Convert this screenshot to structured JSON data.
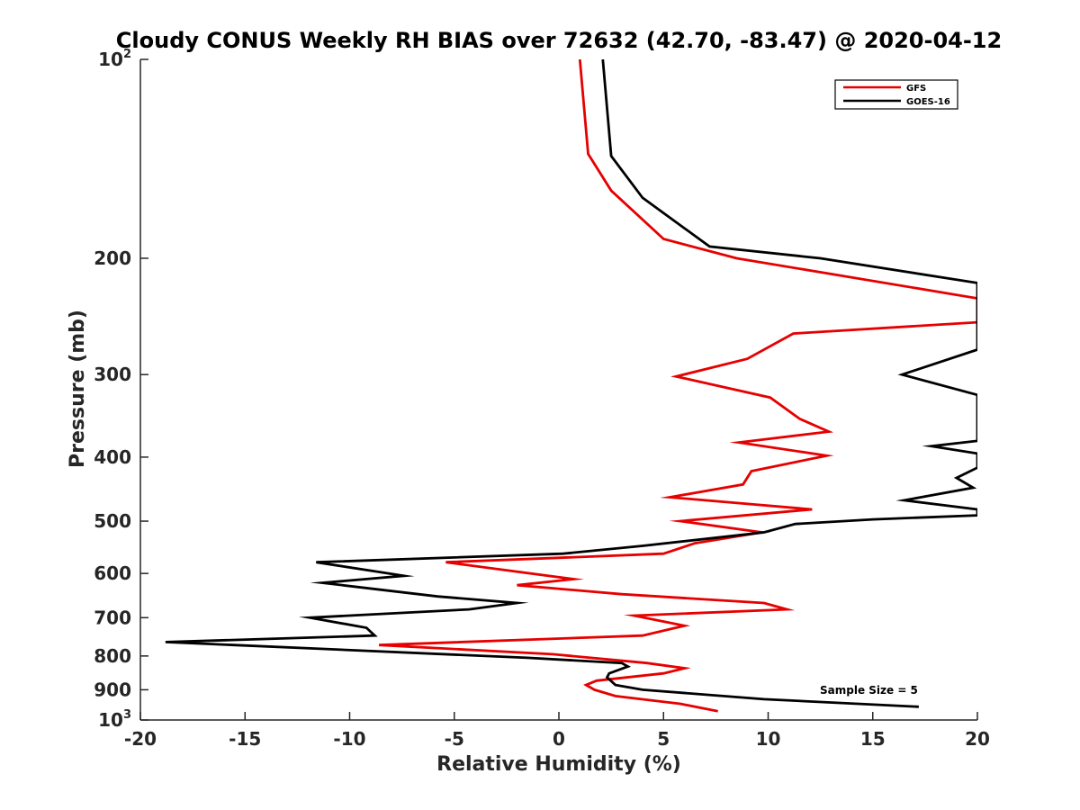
{
  "chart_data": {
    "type": "line",
    "title": "Cloudy CONUS Weekly RH BIAS over 72632 (42.70, -83.47) @ 2020-04-12",
    "xlabel": "Relative Humidity (%)",
    "ylabel": "Pressure (mb)",
    "xlim": [
      -20,
      20
    ],
    "ylim": [
      100,
      1000
    ],
    "yscale": "log",
    "y_reversed": true,
    "grid": false,
    "legend_position": "top-right",
    "annotation": "Sample Size = 5",
    "x_ticks": [
      {
        "value": -20,
        "label": "-20"
      },
      {
        "value": -15,
        "label": "-15"
      },
      {
        "value": -10,
        "label": "-10"
      },
      {
        "value": -5,
        "label": "-5"
      },
      {
        "value": 0,
        "label": "0"
      },
      {
        "value": 5,
        "label": "5"
      },
      {
        "value": 10,
        "label": "10"
      },
      {
        "value": 15,
        "label": "15"
      },
      {
        "value": 20,
        "label": "20"
      }
    ],
    "y_ticks": [
      {
        "value": 100,
        "base": "10",
        "exp": "2"
      },
      {
        "value": 200,
        "label": "200"
      },
      {
        "value": 300,
        "label": "300"
      },
      {
        "value": 400,
        "label": "400"
      },
      {
        "value": 500,
        "label": "500"
      },
      {
        "value": 600,
        "label": "600"
      },
      {
        "value": 700,
        "label": "700"
      },
      {
        "value": 800,
        "label": "800"
      },
      {
        "value": 900,
        "label": "900"
      },
      {
        "value": 1000,
        "base": "10",
        "exp": "3"
      }
    ],
    "series": [
      {
        "name": "GFS",
        "color": "#e60000",
        "points": [
          [
            1.0,
            100
          ],
          [
            1.4,
            139
          ],
          [
            2.5,
            158
          ],
          [
            5.0,
            187
          ],
          [
            8.5,
            200
          ],
          [
            20.0,
            230
          ],
          [
            20.0,
            250
          ],
          [
            11.2,
            260
          ],
          [
            9.0,
            284
          ],
          [
            5.6,
            302
          ],
          [
            10.1,
            325
          ],
          [
            11.5,
            350
          ],
          [
            12.9,
            366
          ],
          [
            8.6,
            380
          ],
          [
            12.8,
            398
          ],
          [
            9.2,
            420
          ],
          [
            8.8,
            440
          ],
          [
            5.3,
            460
          ],
          [
            12.1,
            480
          ],
          [
            5.8,
            500
          ],
          [
            9.7,
            520
          ],
          [
            6.5,
            540
          ],
          [
            5.0,
            560
          ],
          [
            -5.4,
            577
          ],
          [
            0.7,
            612
          ],
          [
            -2.0,
            625
          ],
          [
            3.0,
            645
          ],
          [
            9.8,
            665
          ],
          [
            10.9,
            680
          ],
          [
            3.6,
            695
          ],
          [
            6.0,
            720
          ],
          [
            4.0,
            745
          ],
          [
            -8.6,
            770
          ],
          [
            -0.3,
            795
          ],
          [
            4.2,
            820
          ],
          [
            6.0,
            835
          ],
          [
            5.0,
            850
          ],
          [
            1.8,
            872
          ],
          [
            1.3,
            885
          ],
          [
            1.7,
            900
          ],
          [
            2.7,
            920
          ],
          [
            5.8,
            945
          ],
          [
            7.6,
            970
          ]
        ]
      },
      {
        "name": "GOES-16",
        "color": "#000000",
        "points": [
          [
            2.1,
            100
          ],
          [
            2.5,
            140
          ],
          [
            4.0,
            162
          ],
          [
            7.2,
            192
          ],
          [
            12.5,
            200
          ],
          [
            20.0,
            218
          ],
          [
            20.0,
            275
          ],
          [
            16.4,
            300
          ],
          [
            20.0,
            322
          ],
          [
            20.0,
            378
          ],
          [
            17.8,
            385
          ],
          [
            20.0,
            395
          ],
          [
            20.0,
            415
          ],
          [
            19.0,
            430
          ],
          [
            19.8,
            445
          ],
          [
            16.5,
            465
          ],
          [
            20.0,
            480
          ],
          [
            20.0,
            490
          ],
          [
            15.0,
            497
          ],
          [
            11.3,
            505
          ],
          [
            9.8,
            520
          ],
          [
            4.0,
            545
          ],
          [
            0.2,
            560
          ],
          [
            -11.6,
            577
          ],
          [
            -7.4,
            605
          ],
          [
            -11.3,
            620
          ],
          [
            -5.8,
            650
          ],
          [
            -2.0,
            665
          ],
          [
            -4.3,
            680
          ],
          [
            -11.9,
            700
          ],
          [
            -9.2,
            725
          ],
          [
            -8.8,
            745
          ],
          [
            -18.8,
            762
          ],
          [
            -1.5,
            805
          ],
          [
            3.0,
            820
          ],
          [
            3.3,
            830
          ],
          [
            2.4,
            850
          ],
          [
            2.3,
            862
          ],
          [
            2.7,
            885
          ],
          [
            4.0,
            900
          ],
          [
            9.8,
            930
          ],
          [
            17.2,
            955
          ]
        ]
      }
    ]
  }
}
